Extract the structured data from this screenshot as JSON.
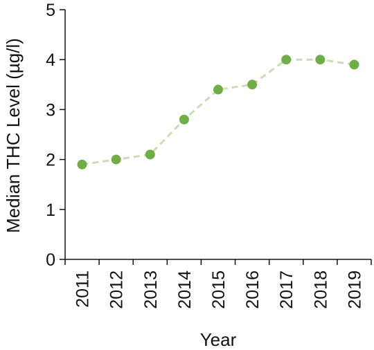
{
  "chart_data": {
    "type": "line",
    "categories": [
      "2011",
      "2012",
      "2013",
      "2014",
      "2015",
      "2016",
      "2017",
      "2018",
      "2019"
    ],
    "series": [
      {
        "values": [
          1.9,
          2.0,
          2.1,
          2.8,
          3.4,
          3.5,
          4.0,
          4.0,
          3.9
        ]
      }
    ],
    "yticks": [
      "0",
      "1",
      "2",
      "3",
      "4",
      "5"
    ],
    "xlabel": "Year",
    "ylabel": "Median THC Level (µg/l)",
    "ylim": [
      0,
      5
    ],
    "grid": false,
    "line_color": "#c5e0b4",
    "marker_color": "#70ad47"
  }
}
